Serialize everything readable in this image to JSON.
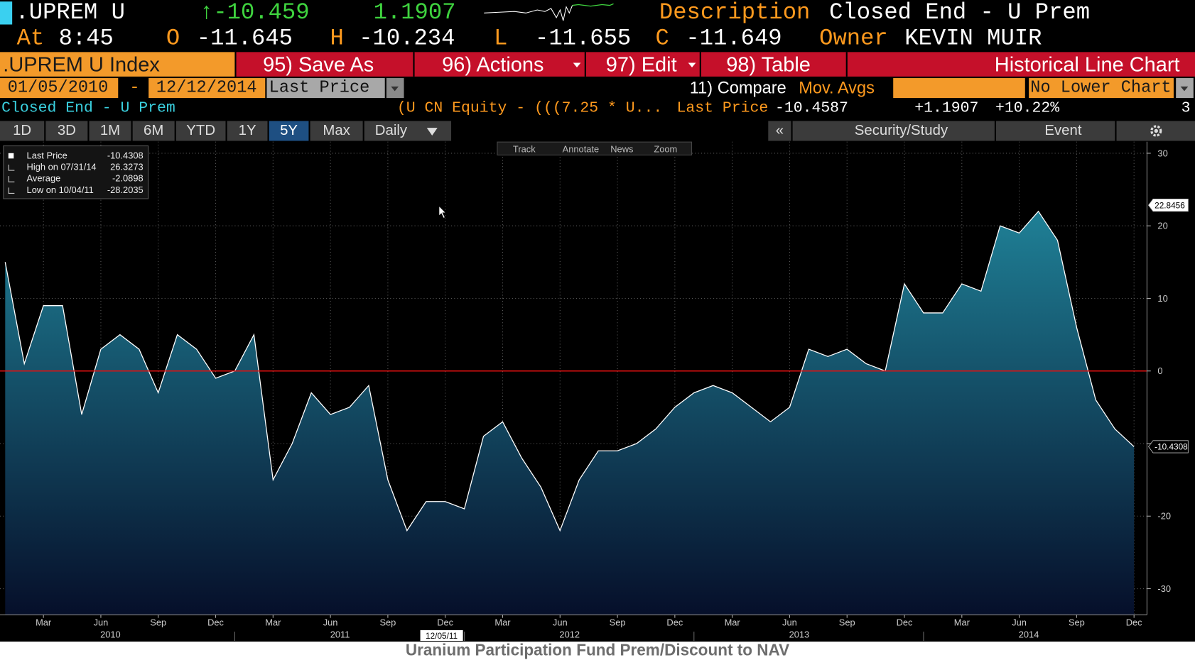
{
  "header": {
    "ticker": ".UPREM U",
    "last_change": "↑-10.459",
    "change": 1.1907,
    "description_label": "Description",
    "description": "Closed End - U Prem",
    "time_label": "At",
    "time": "8:45",
    "open_label": "O",
    "open": -11.645,
    "high_label": "H",
    "high": -10.234,
    "low_label": "L",
    "low": -11.655,
    "close_label": "C",
    "close": -11.649,
    "owner_label": "Owner",
    "owner": "KEVIN MUIR"
  },
  "menu": {
    "security": ".UPREM U Index",
    "buttons": [
      "95) Save As",
      "96) Actions",
      "97) Edit",
      "98) Table"
    ],
    "view": "Historical Line Chart"
  },
  "range": {
    "start": "01/05/2010",
    "separator": "-",
    "end": "12/12/2014",
    "field": "Last Price",
    "compare": "11) Compare",
    "mov_avgs": "Mov. Avgs",
    "lower_chart": "No Lower Chart"
  },
  "info": {
    "name": "Closed End - U Prem",
    "formula": "(U CN Equity - (((7.25 * U...",
    "field": "Last Price",
    "last": -10.4587,
    "change": "+1.1907",
    "change_pct": "+10.22%",
    "page": 3
  },
  "periods": {
    "options": [
      "1D",
      "3D",
      "1M",
      "6M",
      "YTD",
      "1Y",
      "5Y",
      "Max"
    ],
    "selected": 6,
    "frequency": "Daily",
    "collapse": "«",
    "tools": [
      "Security/Study",
      "Event"
    ]
  },
  "chart_tools": [
    "Track",
    "Annotate",
    "News",
    "Zoom"
  ],
  "chart_data": {
    "type": "area",
    "title": "Uranium Participation Fund Prem/Discount to NAV",
    "x": [
      "2010-01",
      "2010-02",
      "2010-03",
      "2010-04",
      "2010-05",
      "2010-06",
      "2010-07",
      "2010-08",
      "2010-09",
      "2010-10",
      "2010-11",
      "2010-12",
      "2011-01",
      "2011-02",
      "2011-03",
      "2011-04",
      "2011-05",
      "2011-06",
      "2011-07",
      "2011-08",
      "2011-09",
      "2011-10",
      "2011-11",
      "2011-12",
      "2012-01",
      "2012-02",
      "2012-03",
      "2012-04",
      "2012-05",
      "2012-06",
      "2012-07",
      "2012-08",
      "2012-09",
      "2012-10",
      "2012-11",
      "2012-12",
      "2013-01",
      "2013-02",
      "2013-03",
      "2013-04",
      "2013-05",
      "2013-06",
      "2013-07",
      "2013-08",
      "2013-09",
      "2013-10",
      "2013-11",
      "2013-12",
      "2014-01",
      "2014-02",
      "2014-03",
      "2014-04",
      "2014-05",
      "2014-06",
      "2014-07",
      "2014-08",
      "2014-09",
      "2014-10",
      "2014-11",
      "2014-12"
    ],
    "series": [
      {
        "name": "Last Price",
        "color": "#ffffff",
        "values": [
          15,
          1,
          9,
          9,
          -6,
          3,
          5,
          3,
          -3,
          5,
          3,
          -1,
          0,
          5,
          -15,
          -10,
          -3,
          -6,
          -5,
          -2,
          -15,
          -22,
          -18,
          -18,
          -19,
          -9,
          -7,
          -12,
          -16,
          -22,
          -15,
          -11,
          -11,
          -10,
          -8,
          -5,
          -3,
          -2,
          -3,
          -5,
          -7,
          -5,
          3,
          2,
          3,
          1,
          0,
          12,
          8,
          8,
          12,
          11,
          20,
          19,
          22,
          18,
          6,
          -4,
          -8,
          -10.4308
        ]
      }
    ],
    "fill_top": "#1f8096",
    "fill_bottom": "#060f2a",
    "ylim": [
      -33.6,
      31.6
    ],
    "yticks": [
      30,
      20,
      10,
      0,
      -10,
      -20,
      -30
    ],
    "grid": true,
    "y_axis_side": "right",
    "xticks": [
      {
        "value": "2010-03",
        "label": "Mar"
      },
      {
        "value": "2010-06",
        "label": "Jun"
      },
      {
        "value": "2010-09",
        "label": "Sep"
      },
      {
        "value": "2010-12",
        "label": "Dec"
      },
      {
        "value": "2011-03",
        "label": "Mar"
      },
      {
        "value": "2011-06",
        "label": "Jun"
      },
      {
        "value": "2011-09",
        "label": "Sep"
      },
      {
        "value": "2011-12",
        "label": "Dec"
      },
      {
        "value": "2012-03",
        "label": "Mar"
      },
      {
        "value": "2012-06",
        "label": "Jun"
      },
      {
        "value": "2012-09",
        "label": "Sep"
      },
      {
        "value": "2012-12",
        "label": "Dec"
      },
      {
        "value": "2013-03",
        "label": "Mar"
      },
      {
        "value": "2013-06",
        "label": "Jun"
      },
      {
        "value": "2013-09",
        "label": "Sep"
      },
      {
        "value": "2013-12",
        "label": "Dec"
      },
      {
        "value": "2014-03",
        "label": "Mar"
      },
      {
        "value": "2014-06",
        "label": "Jun"
      },
      {
        "value": "2014-09",
        "label": "Sep"
      },
      {
        "value": "2014-12",
        "label": "Dec"
      }
    ],
    "year_ticks": [
      2010,
      2011,
      2012,
      2013,
      2014
    ],
    "date_marker": {
      "value": "2011-12-05",
      "label": "12/05/11"
    },
    "reference_line": {
      "value": 0,
      "color": "#e01010"
    },
    "value_markers": [
      {
        "value": 22.8456,
        "background": "#ffffff",
        "color": "#000000"
      },
      {
        "value": -10.4308,
        "background": "#000000",
        "color": "#ffffff"
      }
    ],
    "legend_position": "top-left",
    "legend": [
      {
        "name": "Last Price",
        "value": -10.4308
      },
      {
        "name": "High on 07/31/14",
        "value": 26.3273
      },
      {
        "name": "Average",
        "value": -2.0898
      },
      {
        "name": "Low on 10/04/11",
        "value": -28.2035
      }
    ]
  }
}
